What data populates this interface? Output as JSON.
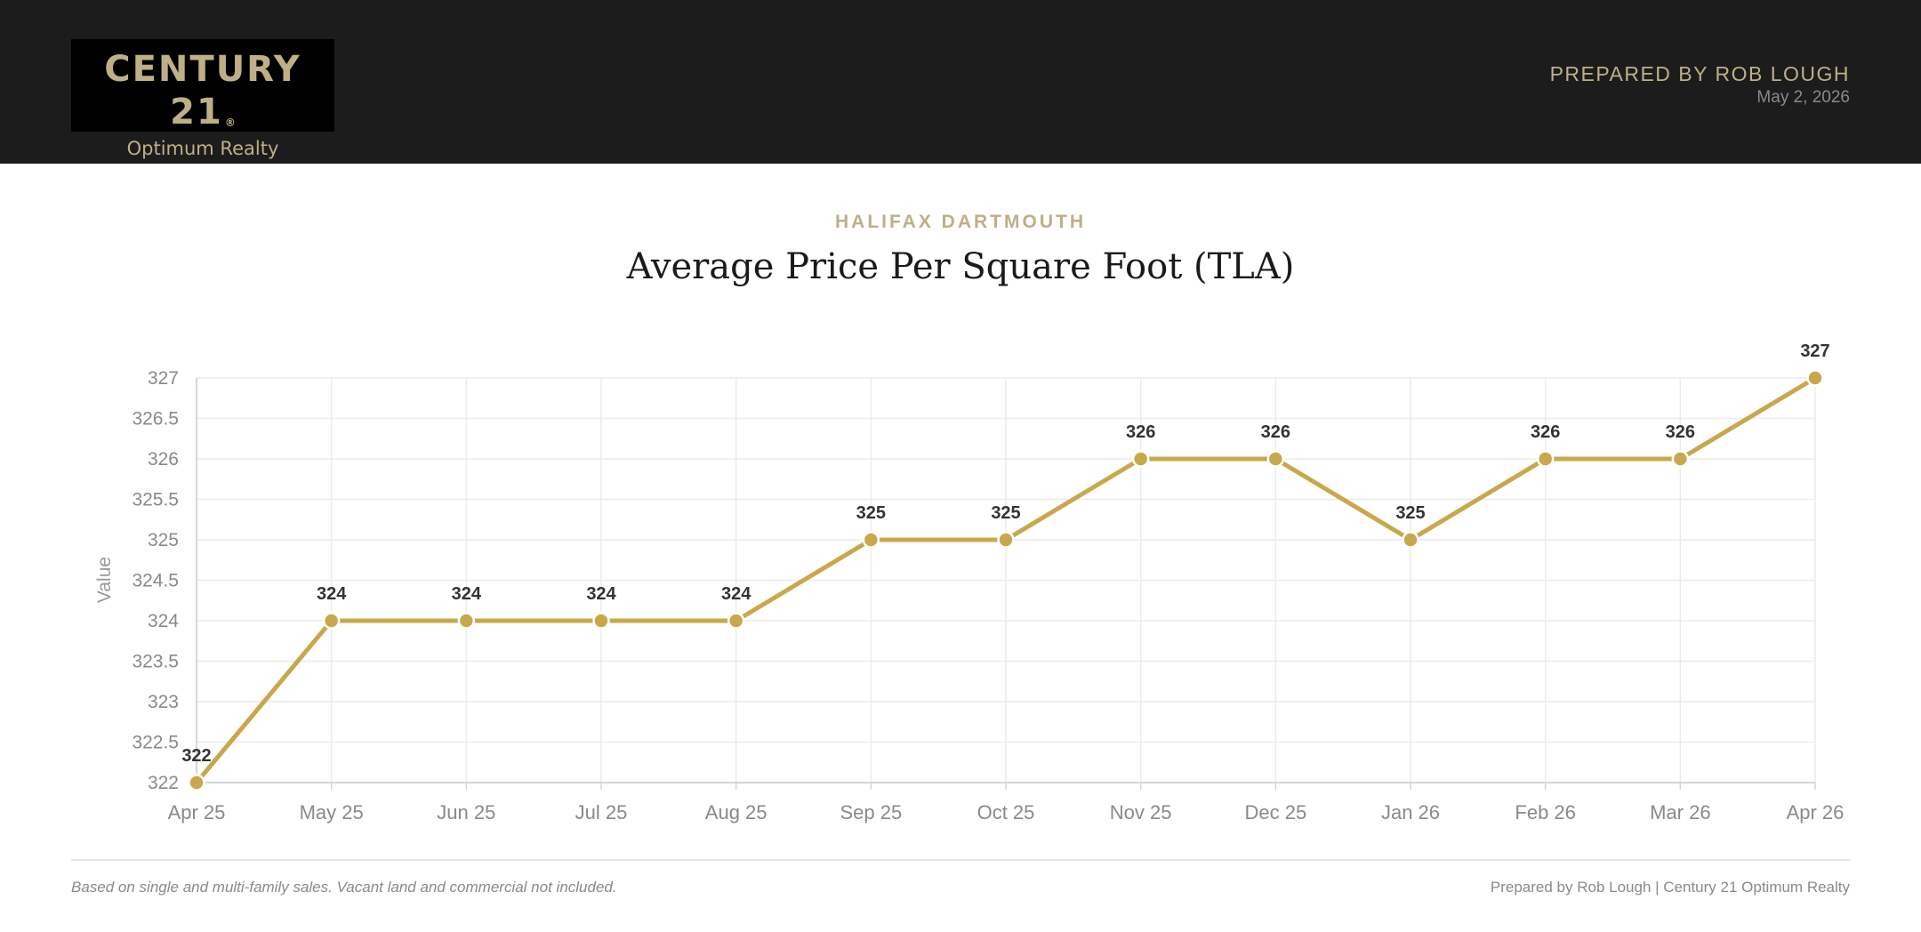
{
  "header": {
    "logo_brand": "CENTURY 21",
    "logo_reg": "®",
    "logo_sub": "Optimum Realty",
    "prepared_by": "PREPARED BY ROB LOUGH",
    "date": "May 2, 2026"
  },
  "colors": {
    "header_bg": "#1c1c1c",
    "gold": "#beaf87",
    "series": "#c9a84c"
  },
  "chart_data": {
    "type": "line",
    "subtitle": "HALIFAX DARTMOUTH",
    "title": "Average Price Per Square Foot (TLA)",
    "xlabel": "",
    "ylabel": "Value",
    "categories": [
      "Apr 25",
      "May 25",
      "Jun 25",
      "Jul 25",
      "Aug 25",
      "Sep 25",
      "Oct 25",
      "Nov 25",
      "Dec 25",
      "Jan 26",
      "Feb 26",
      "Mar 26",
      "Apr 26"
    ],
    "values": [
      322,
      324,
      324,
      324,
      324,
      325,
      325,
      326,
      326,
      325,
      326,
      326,
      327
    ],
    "ylim": [
      322,
      327
    ],
    "yticks": [
      "322",
      "322.5",
      "323",
      "323.5",
      "324",
      "324.5",
      "325",
      "325.5",
      "326",
      "326.5",
      "327"
    ],
    "grid": true,
    "legend": "none"
  },
  "footer": {
    "note": "Based on single and multi-family sales. Vacant land and commercial not included.",
    "credit": "Prepared by Rob Lough | Century 21 Optimum Realty"
  }
}
